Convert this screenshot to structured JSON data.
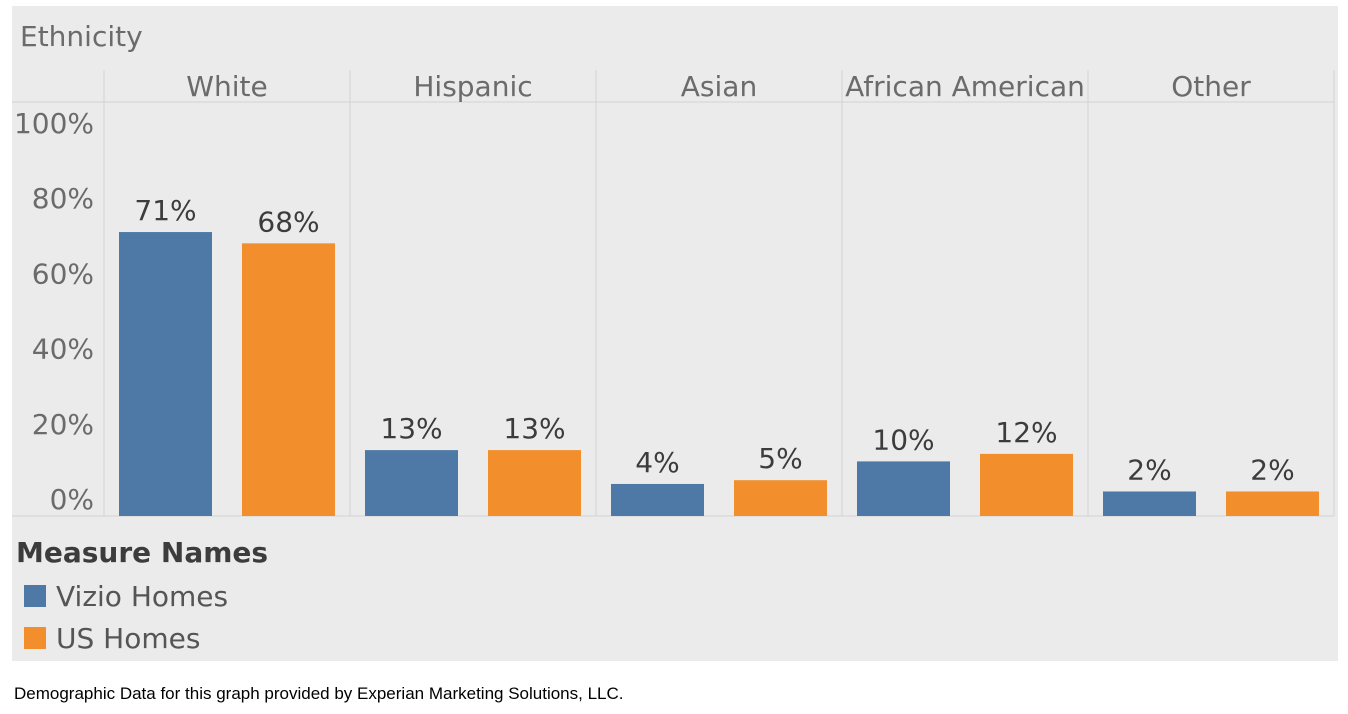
{
  "chart_data": {
    "type": "bar",
    "header": "Ethnicity",
    "categories": [
      "White",
      "Hispanic",
      "Asian",
      "African American",
      "Other"
    ],
    "series": [
      {
        "name": "Vizio Homes",
        "values": [
          71,
          13,
          4,
          10,
          2
        ],
        "labels": [
          "71%",
          "13%",
          "4%",
          "10%",
          "2%"
        ]
      },
      {
        "name": "US Homes",
        "values": [
          68,
          13,
          5,
          12,
          2
        ],
        "labels": [
          "68%",
          "13%",
          "5%",
          "12%",
          "2%"
        ]
      }
    ],
    "ylim": [
      0,
      100
    ],
    "yticks": [
      0,
      20,
      40,
      60,
      80,
      100
    ],
    "ytick_labels": [
      "0%",
      "20%",
      "40%",
      "60%",
      "80%",
      "100%"
    ],
    "grid": false,
    "legend": {
      "title": "Measure Names",
      "placement": "bottom-left"
    }
  },
  "colors": {
    "panel_background": "#ebebeb",
    "vizio": "#4e79a7",
    "us": "#f28e2b",
    "divider": "#d3d3d3",
    "axis_text": "#6b6b6b",
    "label_text": "#3c3c3c"
  },
  "footer": {
    "source_note": "Demographic Data for this graph provided by Experian Marketing Solutions, LLC."
  }
}
